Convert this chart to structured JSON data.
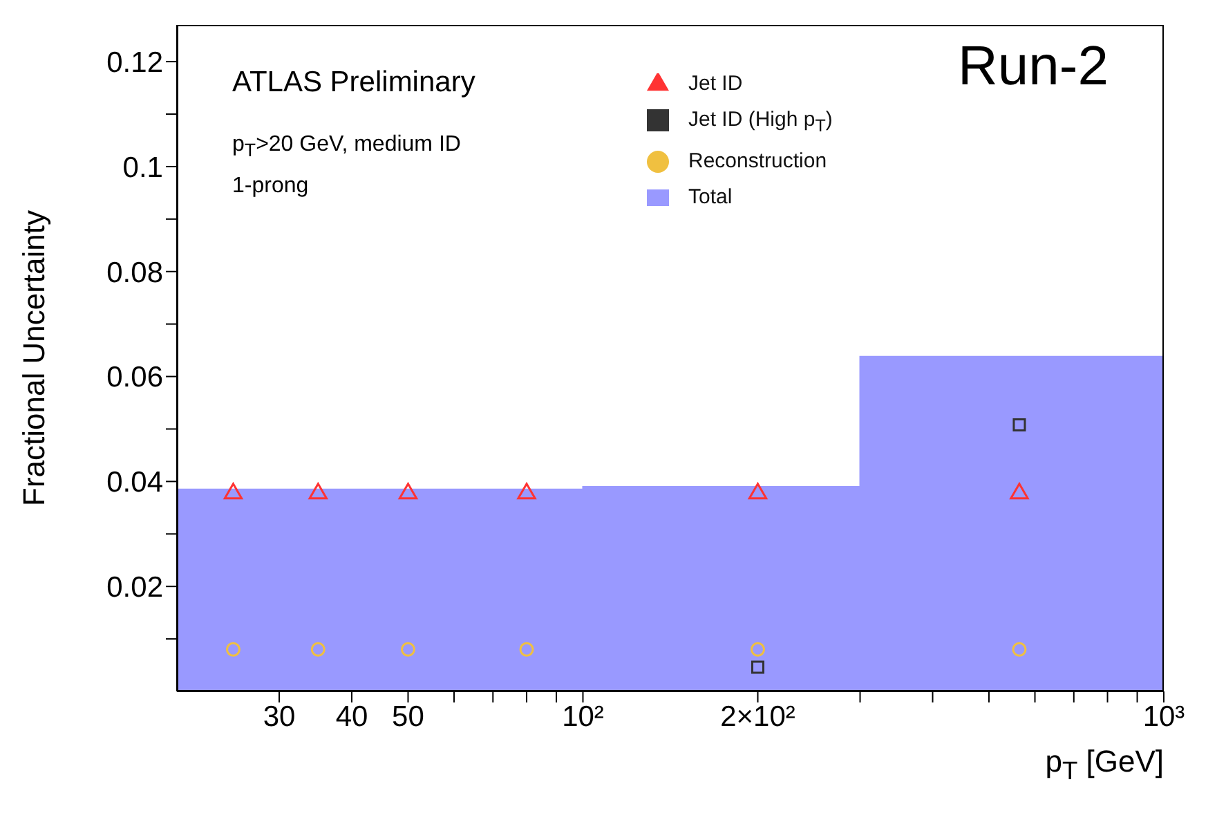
{
  "chart_data": {
    "type": "scatter",
    "xlabel": "p$_{T}$ [GeV]",
    "ylabel": "Fractional Uncertainty",
    "annotations": [
      "ATLAS Preliminary",
      "p$_{T}$>20 GeV, medium ID",
      "1-prong",
      "Run-2"
    ],
    "log": "x",
    "xlim": [
      20,
      1000
    ],
    "ylim": [
      0,
      0.127
    ],
    "xticks": [
      30,
      40,
      50,
      {
        "value": 60,
        "label": null
      },
      {
        "value": 70,
        "label": null
      },
      {
        "value": 80,
        "label": null
      },
      {
        "value": 90,
        "label": null
      },
      {
        "value": 100,
        "label": "10²"
      },
      {
        "value": 200,
        "label": "2×10²"
      },
      {
        "value": 300,
        "label": null
      },
      {
        "value": 400,
        "label": null
      },
      {
        "value": 500,
        "label": null
      },
      {
        "value": 600,
        "label": null
      },
      {
        "value": 700,
        "label": null
      },
      {
        "value": 800,
        "label": null
      },
      {
        "value": 900,
        "label": null
      },
      {
        "value": 1000,
        "label": "10³"
      }
    ],
    "yticks": [
      {
        "value": 0.01,
        "label": null
      },
      0.02,
      {
        "value": 0.03,
        "label": null
      },
      0.04,
      {
        "value": 0.05,
        "label": null
      },
      0.06,
      {
        "value": 0.07,
        "label": null
      },
      0.08,
      {
        "value": 0.09,
        "label": null
      },
      0.1,
      {
        "value": 0.11,
        "label": null
      },
      0.12
    ],
    "grid": false,
    "legend": "top",
    "series": [
      {
        "name": "Jet ID",
        "marker": "triangle",
        "color": "#ff3333",
        "x": [
          25,
          35,
          50,
          80,
          200,
          564
        ],
        "values": [
          0.0377,
          0.0377,
          0.0377,
          0.0377,
          0.0377,
          0.0377
        ]
      },
      {
        "name": "Jet ID (High p$_{T}$)",
        "marker": "square",
        "color": "#333333",
        "x": [
          200,
          564
        ],
        "values": [
          0.0046,
          0.0508
        ]
      },
      {
        "name": "Reconstruction",
        "marker": "circle",
        "color": "#f0c040",
        "x": [
          25,
          35,
          50,
          80,
          200,
          564
        ],
        "values": [
          0.008,
          0.008,
          0.008,
          0.008,
          0.008,
          0.008
        ]
      },
      {
        "name": "Total",
        "type": "area",
        "color": "#9999ff",
        "x": [
          20,
          100,
          100,
          300,
          300,
          1000
        ],
        "values": [
          0.0385,
          0.0385,
          0.039,
          0.039,
          0.0638,
          0.0638
        ]
      }
    ]
  }
}
